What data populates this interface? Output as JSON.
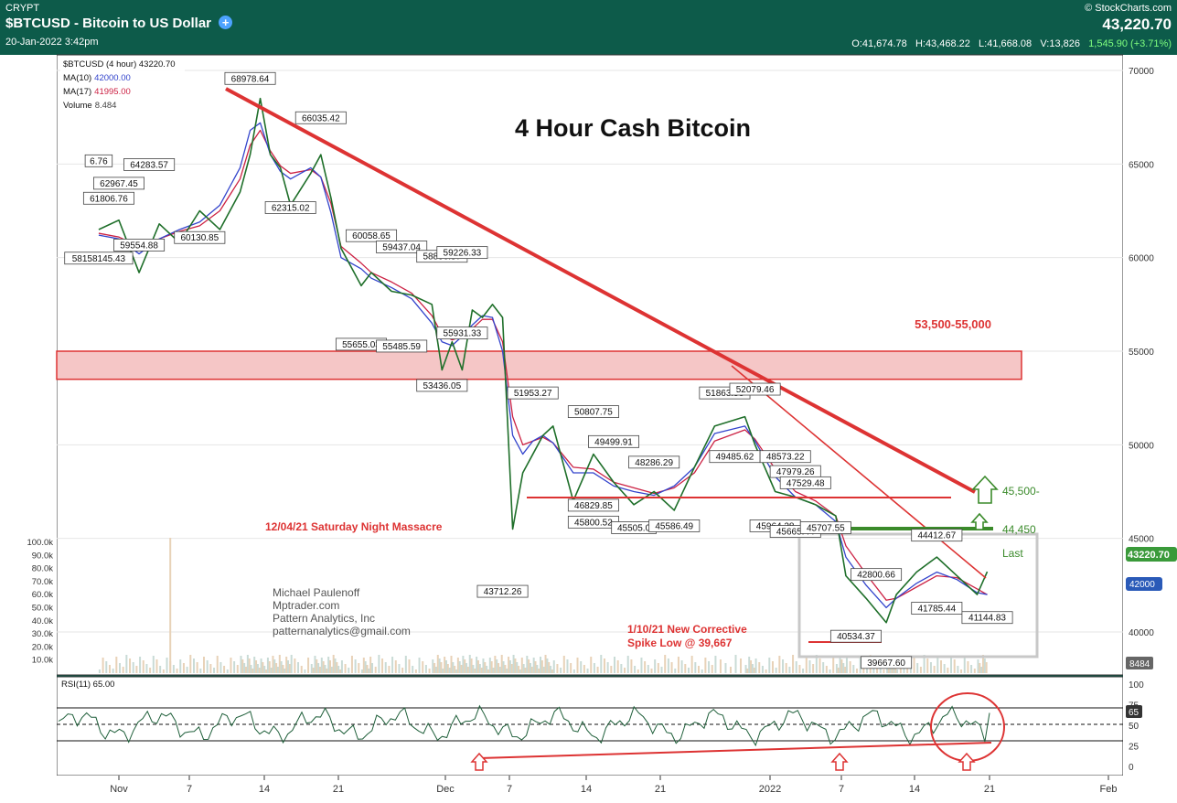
{
  "header": {
    "exchange": "CRYPT",
    "title": "$BTCUSD - Bitcoin to US Dollar",
    "date": "20-Jan-2022 3:42pm",
    "brand": "© StockCharts.com",
    "price": "43,220.70",
    "ohlc": {
      "open_label": "O:",
      "open": "41,674.78",
      "high_label": "H:",
      "high": "43,468.22",
      "low_label": "L:",
      "low": "41,668.08",
      "vol_label": "V:",
      "vol": "13,826",
      "change": "1,545.90 (+3.71%)"
    },
    "colors": {
      "band": "#0d5b4a",
      "change": "#7fff7f"
    }
  },
  "legend": {
    "symbol": "$BTCUSD (4 hour) 43220.70",
    "ma10_label": "MA(10)",
    "ma10_value": "42000.00",
    "ma17_label": "MA(17)",
    "ma17_value": "41995.00",
    "volume_label": "Volume",
    "volume_value": "8.484"
  },
  "annotations": {
    "chart_title": "4 Hour Cash Bitcoin",
    "zone_label": "53,500-55,000",
    "massacre": "12/04/21 Saturday Night Massacre",
    "author_lines": [
      "Michael Paulenoff",
      "Mptrader.com",
      "Pattern Analytics, Inc",
      "patternanalytics@gmail.com"
    ],
    "spike_line1": "1/10/21 New Corrective",
    "spike_line2": "Spike Low @ 39,667",
    "level_45500": "45,500-",
    "level_44450": "44,450",
    "last": "Last"
  },
  "axis": {
    "price_ticks": [
      "70000",
      "65000",
      "60000",
      "55000",
      "50000",
      "45000",
      "40000"
    ],
    "price_tick_values": [
      70000,
      65000,
      60000,
      55000,
      50000,
      45000,
      40000
    ],
    "current_price": "43220.70",
    "ma_value_tag": "42000",
    "volume_ticks": [
      "100.0k",
      "90.0k",
      "80.0k",
      "70.0k",
      "60.0k",
      "50.0k",
      "40.0k",
      "30.0k",
      "20.0k",
      "10.0k"
    ],
    "volume_tag": "8484",
    "rsi_ticks": [
      "100",
      "75",
      "50",
      "25",
      "0"
    ],
    "rsi_tag": "65",
    "x_ticks": [
      "Nov",
      "7",
      "14",
      "21",
      "Dec",
      "7",
      "14",
      "21",
      "2022",
      "7",
      "14",
      "21",
      "Feb"
    ]
  },
  "rsi": {
    "label": "RSI(11) 65.00",
    "value": 65,
    "overbought": 70,
    "oversold": 30
  },
  "chart_data": {
    "type": "line",
    "title": "4 Hour Cash Bitcoin",
    "xlabel": "",
    "ylabel": "",
    "ylim": [
      37500,
      71500
    ],
    "grid": true,
    "x": [
      "2021-10-24",
      "2021-10-26",
      "2021-10-28",
      "2021-10-30",
      "2021-11-01",
      "2021-11-03",
      "2021-11-05",
      "2021-11-07",
      "2021-11-08",
      "2021-11-09",
      "2021-11-10",
      "2021-11-11",
      "2021-11-12",
      "2021-11-14",
      "2021-11-15",
      "2021-11-16",
      "2021-11-17",
      "2021-11-19",
      "2021-11-20",
      "2021-11-22",
      "2021-11-24",
      "2021-11-26",
      "2021-11-27",
      "2021-11-28",
      "2021-11-29",
      "2021-11-30",
      "2021-12-01",
      "2021-12-02",
      "2021-12-03",
      "2021-12-04",
      "2021-12-05",
      "2021-12-06",
      "2021-12-07",
      "2021-12-08",
      "2021-12-10",
      "2021-12-12",
      "2021-12-14",
      "2021-12-16",
      "2021-12-18",
      "2021-12-20",
      "2021-12-22",
      "2021-12-24",
      "2021-12-27",
      "2021-12-28",
      "2021-12-30",
      "2022-01-01",
      "2022-01-03",
      "2022-01-05",
      "2022-01-06",
      "2022-01-08",
      "2022-01-10",
      "2022-01-11",
      "2022-01-13",
      "2022-01-15",
      "2022-01-17",
      "2022-01-19",
      "2022-01-20"
    ],
    "series": [
      {
        "values": [
          61500,
          62000,
          59200,
          61800,
          60800,
          62500,
          61500,
          63500,
          65500,
          68500,
          65500,
          64800,
          62800,
          64500,
          65500,
          63200,
          60500,
          58500,
          59200,
          58200,
          58000,
          57500,
          54000,
          55500,
          54000,
          57200,
          56800,
          57500,
          56800,
          45500,
          48500,
          49500,
          50500,
          51000,
          47000,
          49500,
          48000,
          46800,
          47500,
          46500,
          48800,
          51000,
          51500,
          50000,
          47500,
          47200,
          46800,
          46200,
          43000,
          41800,
          40500,
          42000,
          43200,
          44000,
          43000,
          42000,
          43220
        ]
      }
    ],
    "labels": [
      {
        "x": "2021-10-24",
        "y": 65000,
        "text": "6.76"
      },
      {
        "x": "2021-10-26",
        "y": 63800,
        "text": "62967.45"
      },
      {
        "x": "2021-10-25",
        "y": 63000,
        "text": "61806.76"
      },
      {
        "x": "2021-10-24",
        "y": 59800,
        "text": "58158145.43"
      },
      {
        "x": "2021-10-29",
        "y": 64800,
        "text": "64283.57"
      },
      {
        "x": "2021-10-28",
        "y": 60500,
        "text": "59554.88"
      },
      {
        "x": "2021-11-03",
        "y": 60900,
        "text": "60130.85"
      },
      {
        "x": "2021-11-08",
        "y": 69400,
        "text": "68978.64"
      },
      {
        "x": "2021-11-15",
        "y": 67300,
        "text": "66035.42"
      },
      {
        "x": "2021-11-12",
        "y": 62500,
        "text": "62315.02"
      },
      {
        "x": "2021-11-20",
        "y": 61000,
        "text": "60058.65"
      },
      {
        "x": "2021-11-23",
        "y": 60400,
        "text": "59437.04"
      },
      {
        "x": "2021-11-27",
        "y": 59900,
        "text": "58896.57"
      },
      {
        "x": "2021-11-29",
        "y": 60100,
        "text": "59226.33"
      },
      {
        "x": "2021-11-19",
        "y": 55200,
        "text": "55655.03"
      },
      {
        "x": "2021-11-23",
        "y": 55100,
        "text": "55485.59"
      },
      {
        "x": "2021-11-29",
        "y": 55800,
        "text": "55931.33"
      },
      {
        "x": "2021-11-27",
        "y": 53000,
        "text": "53436.05"
      },
      {
        "x": "2021-12-06",
        "y": 52600,
        "text": "51953.27"
      },
      {
        "x": "2021-12-12",
        "y": 51600,
        "text": "50807.75"
      },
      {
        "x": "2021-12-14",
        "y": 50000,
        "text": "49499.91"
      },
      {
        "x": "2021-12-18",
        "y": 48900,
        "text": "48286.29"
      },
      {
        "x": "2021-12-12",
        "y": 46600,
        "text": "46829.85"
      },
      {
        "x": "2021-12-12",
        "y": 45700,
        "text": "45800.52"
      },
      {
        "x": "2021-12-16",
        "y": 45400,
        "text": "45505.0"
      },
      {
        "x": "2021-12-20",
        "y": 45500,
        "text": "45586.49"
      },
      {
        "x": "2021-12-03",
        "y": 42000,
        "text": "43712.26"
      },
      {
        "x": "2021-12-25",
        "y": 52600,
        "text": "51863.53"
      },
      {
        "x": "2021-12-28",
        "y": 52800,
        "text": "52079.46"
      },
      {
        "x": "2021-12-26",
        "y": 49200,
        "text": "49485.62"
      },
      {
        "x": "2021-12-31",
        "y": 49200,
        "text": "48573.22"
      },
      {
        "x": "2022-01-01",
        "y": 48400,
        "text": "47979.26"
      },
      {
        "x": "2022-01-02",
        "y": 47800,
        "text": "47529.48"
      },
      {
        "x": "2021-12-30",
        "y": 45500,
        "text": "45964.28"
      },
      {
        "x": "2022-01-01",
        "y": 45200,
        "text": "45665.44"
      },
      {
        "x": "2022-01-04",
        "y": 45400,
        "text": "45707.55"
      },
      {
        "x": "2022-01-15",
        "y": 45000,
        "text": "44412.67"
      },
      {
        "x": "2022-01-09",
        "y": 42900,
        "text": "42800.66"
      },
      {
        "x": "2022-01-15",
        "y": 41100,
        "text": "41785.44"
      },
      {
        "x": "2022-01-20",
        "y": 40600,
        "text": "41144.83"
      },
      {
        "x": "2022-01-07",
        "y": 39600,
        "text": "40534.37"
      },
      {
        "x": "2022-01-10",
        "y": 38200,
        "text": "39667.60"
      }
    ],
    "ma10": [
      61200,
      61000,
      60200,
      61000,
      61500,
      61900,
      62800,
      64800,
      66800,
      67200,
      65500,
      64600,
      64200,
      64800,
      64300,
      62400,
      60000,
      59400,
      58900,
      58400,
      57800,
      56500,
      55500,
      55300,
      55800,
      56400,
      56900,
      56800,
      55000,
      50500,
      49500,
      50200,
      50500,
      50100,
      48500,
      48500,
      47800,
      47500,
      47300,
      47800,
      48800,
      50600,
      51000,
      50200,
      48300,
      47200,
      46800,
      45900,
      44000,
      42500,
      41300,
      41800,
      42600,
      43200,
      42800,
      42100,
      42000
    ],
    "ma17": [
      61300,
      61100,
      60600,
      61000,
      61400,
      61700,
      62500,
      64200,
      66000,
      66800,
      65700,
      64900,
      64500,
      64700,
      64300,
      62900,
      60600,
      59700,
      59200,
      58700,
      58100,
      56900,
      55900,
      55600,
      55800,
      56200,
      56700,
      56700,
      55500,
      51500,
      50000,
      50200,
      50400,
      50100,
      48800,
      48700,
      48000,
      47700,
      47400,
      47700,
      48500,
      50200,
      50800,
      50300,
      48700,
      47500,
      47000,
      46200,
      44600,
      43100,
      41700,
      41800,
      42400,
      43000,
      42900,
      42300,
      41995
    ]
  }
}
